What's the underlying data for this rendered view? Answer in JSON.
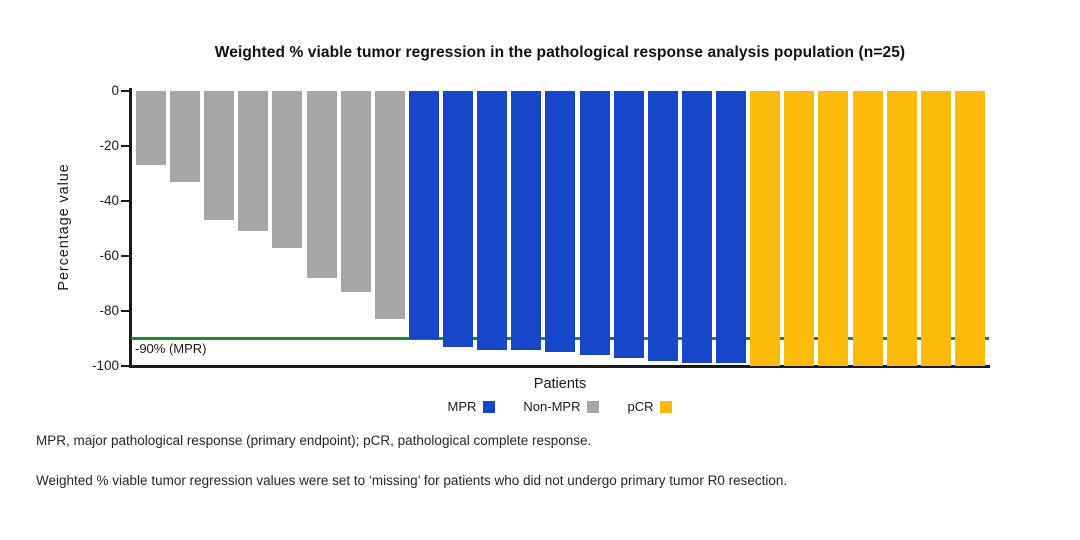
{
  "chart_data": {
    "type": "bar",
    "title": "Weighted % viable tumor regression in the pathological response analysis population (n=25)",
    "xlabel": "Patients",
    "ylabel": "Percentage value",
    "ylim": [
      -100,
      0
    ],
    "yticks": [
      0,
      -20,
      -40,
      -60,
      -80,
      -100
    ],
    "grid": false,
    "n_patients": 25,
    "reference_line": {
      "value": -90,
      "label": "-90% (MPR)",
      "color": "#1E8C24"
    },
    "series": [
      {
        "name": "Non-MPR",
        "color": "#A6A6A6",
        "values": [
          -27,
          -33,
          -47,
          -51,
          -57,
          -68,
          -73,
          -83
        ]
      },
      {
        "name": "MPR",
        "color": "#1547C8",
        "values": [
          -90,
          -93,
          -94,
          -94,
          -95,
          -96,
          -97,
          -98,
          -99,
          -99
        ]
      },
      {
        "name": "pCR",
        "color": "#FCBA0A",
        "values": [
          -100,
          -100,
          -100,
          -100,
          -100,
          -100,
          -100
        ]
      }
    ],
    "legend": [
      {
        "label": "MPR",
        "color": "#1547C8"
      },
      {
        "label": "Non-MPR",
        "color": "#A6A6A6"
      },
      {
        "label": "pCR",
        "color": "#FCBA0A"
      }
    ],
    "legend_position": "bottom"
  },
  "footnotes": {
    "abbreviations": "MPR, major pathological response (primary endpoint); pCR, pathological complete response.",
    "missing_note": "Weighted % viable tumor regression values were set to ‘missing’ for patients who did not undergo primary tumor R0 resection."
  }
}
